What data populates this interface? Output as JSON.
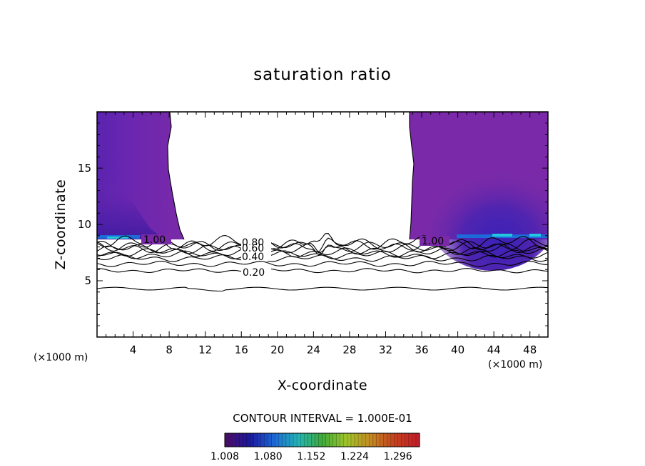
{
  "chart_data": {
    "type": "contour",
    "title": "saturation ratio",
    "xlabel": "X-coordinate",
    "ylabel": "Z-coordinate",
    "x_unit": "(×1000 m)",
    "y_unit": "(×1000 m)",
    "xlim": [
      0,
      50
    ],
    "ylim": [
      0,
      20
    ],
    "x_ticks": [
      "4",
      "8",
      "12",
      "16",
      "20",
      "24",
      "28",
      "32",
      "36",
      "40",
      "44",
      "48"
    ],
    "y_ticks": [
      "5",
      "10",
      "15"
    ],
    "contour_interval_label": "CONTOUR INTERVAL = 1.000E-01",
    "contour_lines": [
      {
        "label": "0.20",
        "z": 5.9
      },
      {
        "label": "0.40",
        "z": 7.0
      },
      {
        "label": "0.60",
        "z": 7.5
      },
      {
        "label": "0.80",
        "z": 8.0
      },
      {
        "label": "1.00",
        "z": 8.4
      }
    ],
    "line_labels_shown": [
      "0.20",
      "0.40",
      "0.60",
      "0.80",
      "1.00",
      "1.00"
    ],
    "colorbar": {
      "min": 1.008,
      "max": 1.332,
      "tick_labels": [
        "1.008",
        "1.080",
        "1.152",
        "1.224",
        "1.296"
      ],
      "colors": [
        "#4a0d6a",
        "#1a1a9e",
        "#1e6ad8",
        "#22b4b4",
        "#3fa93a",
        "#9ec52a",
        "#c48a22",
        "#c4421e",
        "#c41e2a"
      ]
    },
    "colors": {
      "supersaturated_fill": "#7a2aa8",
      "deep_fill": "#4a22b0",
      "cyan_patch": "#22c8e0"
    }
  }
}
